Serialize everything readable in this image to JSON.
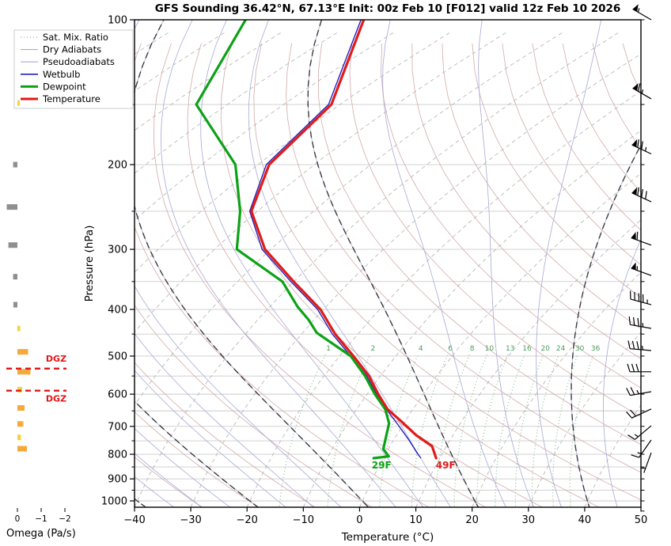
{
  "title": "GFS Sounding 36.42°N, 67.13°E Init: 00z Feb 10 [F012] valid 12z Feb 10 2026",
  "colors": {
    "temperature": "#e01b1b",
    "dewpoint": "#0ca216",
    "wetbulb": "#2222bb",
    "dry_adiabat": "#cfa0a0",
    "pseudoadiabat": "#a8a8d8",
    "dark_pseudoadiabat": "#3c3c3c",
    "isotherm": "#b9b9b9",
    "gridline": "#cbcbcb",
    "mixing_ratio": "#89bb90",
    "mixing_ratio_label": "#4a9e5c",
    "dgz": "#e31515",
    "spine": "#000000",
    "omega": {
      "orange": "#F5A93D",
      "yellow": "#F2D43E",
      "gray": "#8F8F8F"
    }
  },
  "legend": [
    {
      "label": "Sat. Mix. Ratio",
      "style": "dotted",
      "color_key": "mixing_ratio"
    },
    {
      "label": "Dry Adiabats",
      "style": "thin",
      "color_key": "dry_adiabat"
    },
    {
      "label": "Pseudoadiabats",
      "style": "thin",
      "color_key": "pseudoadiabat"
    },
    {
      "label": "Wetbulb",
      "style": "medium",
      "color_key": "wetbulb"
    },
    {
      "label": "Dewpoint",
      "style": "thick",
      "color_key": "dewpoint"
    },
    {
      "label": "Temperature",
      "style": "thick",
      "color_key": "temperature"
    }
  ],
  "axes": {
    "pressure": {
      "title": "Pressure (hPa)",
      "major_ticks": [
        100,
        200,
        300,
        400,
        500,
        600,
        700,
        800,
        900,
        1000
      ],
      "minor_ticks": [
        150,
        250,
        350,
        450,
        550,
        650,
        750,
        850,
        950
      ],
      "scale": "log"
    },
    "temperature": {
      "title": "Temperature (°C)",
      "ticks": [
        -40,
        -30,
        -20,
        -10,
        0,
        10,
        20,
        30,
        40,
        50
      ],
      "tick_labels": [
        "−40",
        "−30",
        "−20",
        "−10",
        "0",
        "10",
        "20",
        "30",
        "40",
        "50"
      ]
    },
    "omega": {
      "title": "Omega (Pa/s)",
      "ticks": [
        0,
        -1,
        -2
      ],
      "tick_labels": [
        "0",
        "−1",
        "−2"
      ]
    }
  },
  "chart_data": {
    "type": "skewt_sounding",
    "pressure_range_hpa": [
      100,
      1050
    ],
    "temperature_range_c": [
      -40,
      50
    ],
    "grid": "horizontal gray lines every 50 hPa, log-p scale",
    "profiles": {
      "temperature": [
        [
          100,
          -89
        ],
        [
          150,
          -71.5
        ],
        [
          200,
          -68
        ],
        [
          250,
          -61
        ],
        [
          300,
          -51
        ],
        [
          350,
          -40
        ],
        [
          400,
          -30.5
        ],
        [
          450,
          -24
        ],
        [
          500,
          -17.5
        ],
        [
          550,
          -12
        ],
        [
          600,
          -8
        ],
        [
          645,
          -4.5
        ],
        [
          685,
          -0.5
        ],
        [
          730,
          3.5
        ],
        [
          770,
          7.5
        ],
        [
          815,
          9.4
        ]
      ],
      "dewpoint": [
        [
          100,
          -110
        ],
        [
          150,
          -95.5
        ],
        [
          200,
          -74
        ],
        [
          250,
          -63
        ],
        [
          300,
          -56
        ],
        [
          350,
          -42
        ],
        [
          395,
          -35
        ],
        [
          420,
          -31
        ],
        [
          447,
          -27.5
        ],
        [
          500,
          -18
        ],
        [
          550,
          -12.7
        ],
        [
          600,
          -8.6
        ],
        [
          645,
          -4.9
        ],
        [
          690,
          -2.6
        ],
        [
          780,
          -0.9
        ],
        [
          808,
          0.8
        ],
        [
          815,
          -1.7
        ]
      ],
      "wetbulb": [
        [
          100,
          -89.5
        ],
        [
          150,
          -72
        ],
        [
          200,
          -68.5
        ],
        [
          250,
          -61.3
        ],
        [
          300,
          -51.5
        ],
        [
          350,
          -40.5
        ],
        [
          400,
          -31
        ],
        [
          450,
          -24.5
        ],
        [
          500,
          -18
        ],
        [
          550,
          -12.4
        ],
        [
          600,
          -8.3
        ],
        [
          645,
          -4.7
        ],
        [
          690,
          -1.2
        ],
        [
          745,
          2.6
        ],
        [
          795,
          5.5
        ],
        [
          815,
          6.7
        ]
      ]
    },
    "surface": {
      "pressure": 815,
      "temperature_c": 9.4,
      "dewpoint_c": -1.7,
      "temperature_label": "49F",
      "dewpoint_label": "29F"
    },
    "mixing_ratio_lines_g_kg": [
      1,
      2,
      4,
      6,
      8,
      10,
      13,
      16,
      20,
      24,
      30,
      36
    ],
    "isotherm_step_c": 10,
    "dry_adiabat_theta_k": {
      "from": 243,
      "to": 443,
      "step": 10
    },
    "pseudoadiabat_thetaw_c": {
      "from": -35,
      "to": 45,
      "step": 5
    },
    "dark_pseudoadiabat_thetaw_c": [
      -40,
      -20,
      0,
      20,
      40
    ],
    "dgz": {
      "label": "DGZ",
      "pressures_hpa": [
        531,
        590
      ]
    },
    "omega_bars": [
      {
        "p": 149,
        "value": -0.1,
        "color": "yellow"
      },
      {
        "p": 200,
        "value": 0.18,
        "color": "gray"
      },
      {
        "p": 245,
        "value": 0.45,
        "color": "gray"
      },
      {
        "p": 294,
        "value": 0.38,
        "color": "gray"
      },
      {
        "p": 342,
        "value": 0.18,
        "color": "gray"
      },
      {
        "p": 391,
        "value": 0.17,
        "color": "gray"
      },
      {
        "p": 438,
        "value": -0.12,
        "color": "yellow"
      },
      {
        "p": 490,
        "value": -0.45,
        "color": "orange"
      },
      {
        "p": 539,
        "value": -0.55,
        "color": "orange"
      },
      {
        "p": 587,
        "value": -0.2,
        "color": "yellow"
      },
      {
        "p": 641,
        "value": -0.3,
        "color": "orange"
      },
      {
        "p": 692,
        "value": -0.25,
        "color": "orange"
      },
      {
        "p": 738,
        "value": -0.15,
        "color": "yellow"
      },
      {
        "p": 779,
        "value": -0.4,
        "color": "orange"
      }
    ],
    "wind_barbs": [
      {
        "p": 100,
        "speed_kt": 55,
        "dir_deg": 300
      },
      {
        "p": 146,
        "speed_kt": 65,
        "dir_deg": 300
      },
      {
        "p": 190,
        "speed_kt": 75,
        "dir_deg": 295
      },
      {
        "p": 239,
        "speed_kt": 80,
        "dir_deg": 295
      },
      {
        "p": 294,
        "speed_kt": 60,
        "dir_deg": 290
      },
      {
        "p": 340,
        "speed_kt": 55,
        "dir_deg": 290
      },
      {
        "p": 391,
        "speed_kt": 45,
        "dir_deg": 285
      },
      {
        "p": 438,
        "speed_kt": 35,
        "dir_deg": 280
      },
      {
        "p": 487,
        "speed_kt": 35,
        "dir_deg": 275
      },
      {
        "p": 539,
        "speed_kt": 30,
        "dir_deg": 270
      },
      {
        "p": 593,
        "speed_kt": 25,
        "dir_deg": 260
      },
      {
        "p": 644,
        "speed_kt": 20,
        "dir_deg": 245
      },
      {
        "p": 698,
        "speed_kt": 15,
        "dir_deg": 230
      },
      {
        "p": 747,
        "speed_kt": 15,
        "dir_deg": 215
      },
      {
        "p": 794,
        "speed_kt": 5,
        "dir_deg": 200
      }
    ]
  }
}
